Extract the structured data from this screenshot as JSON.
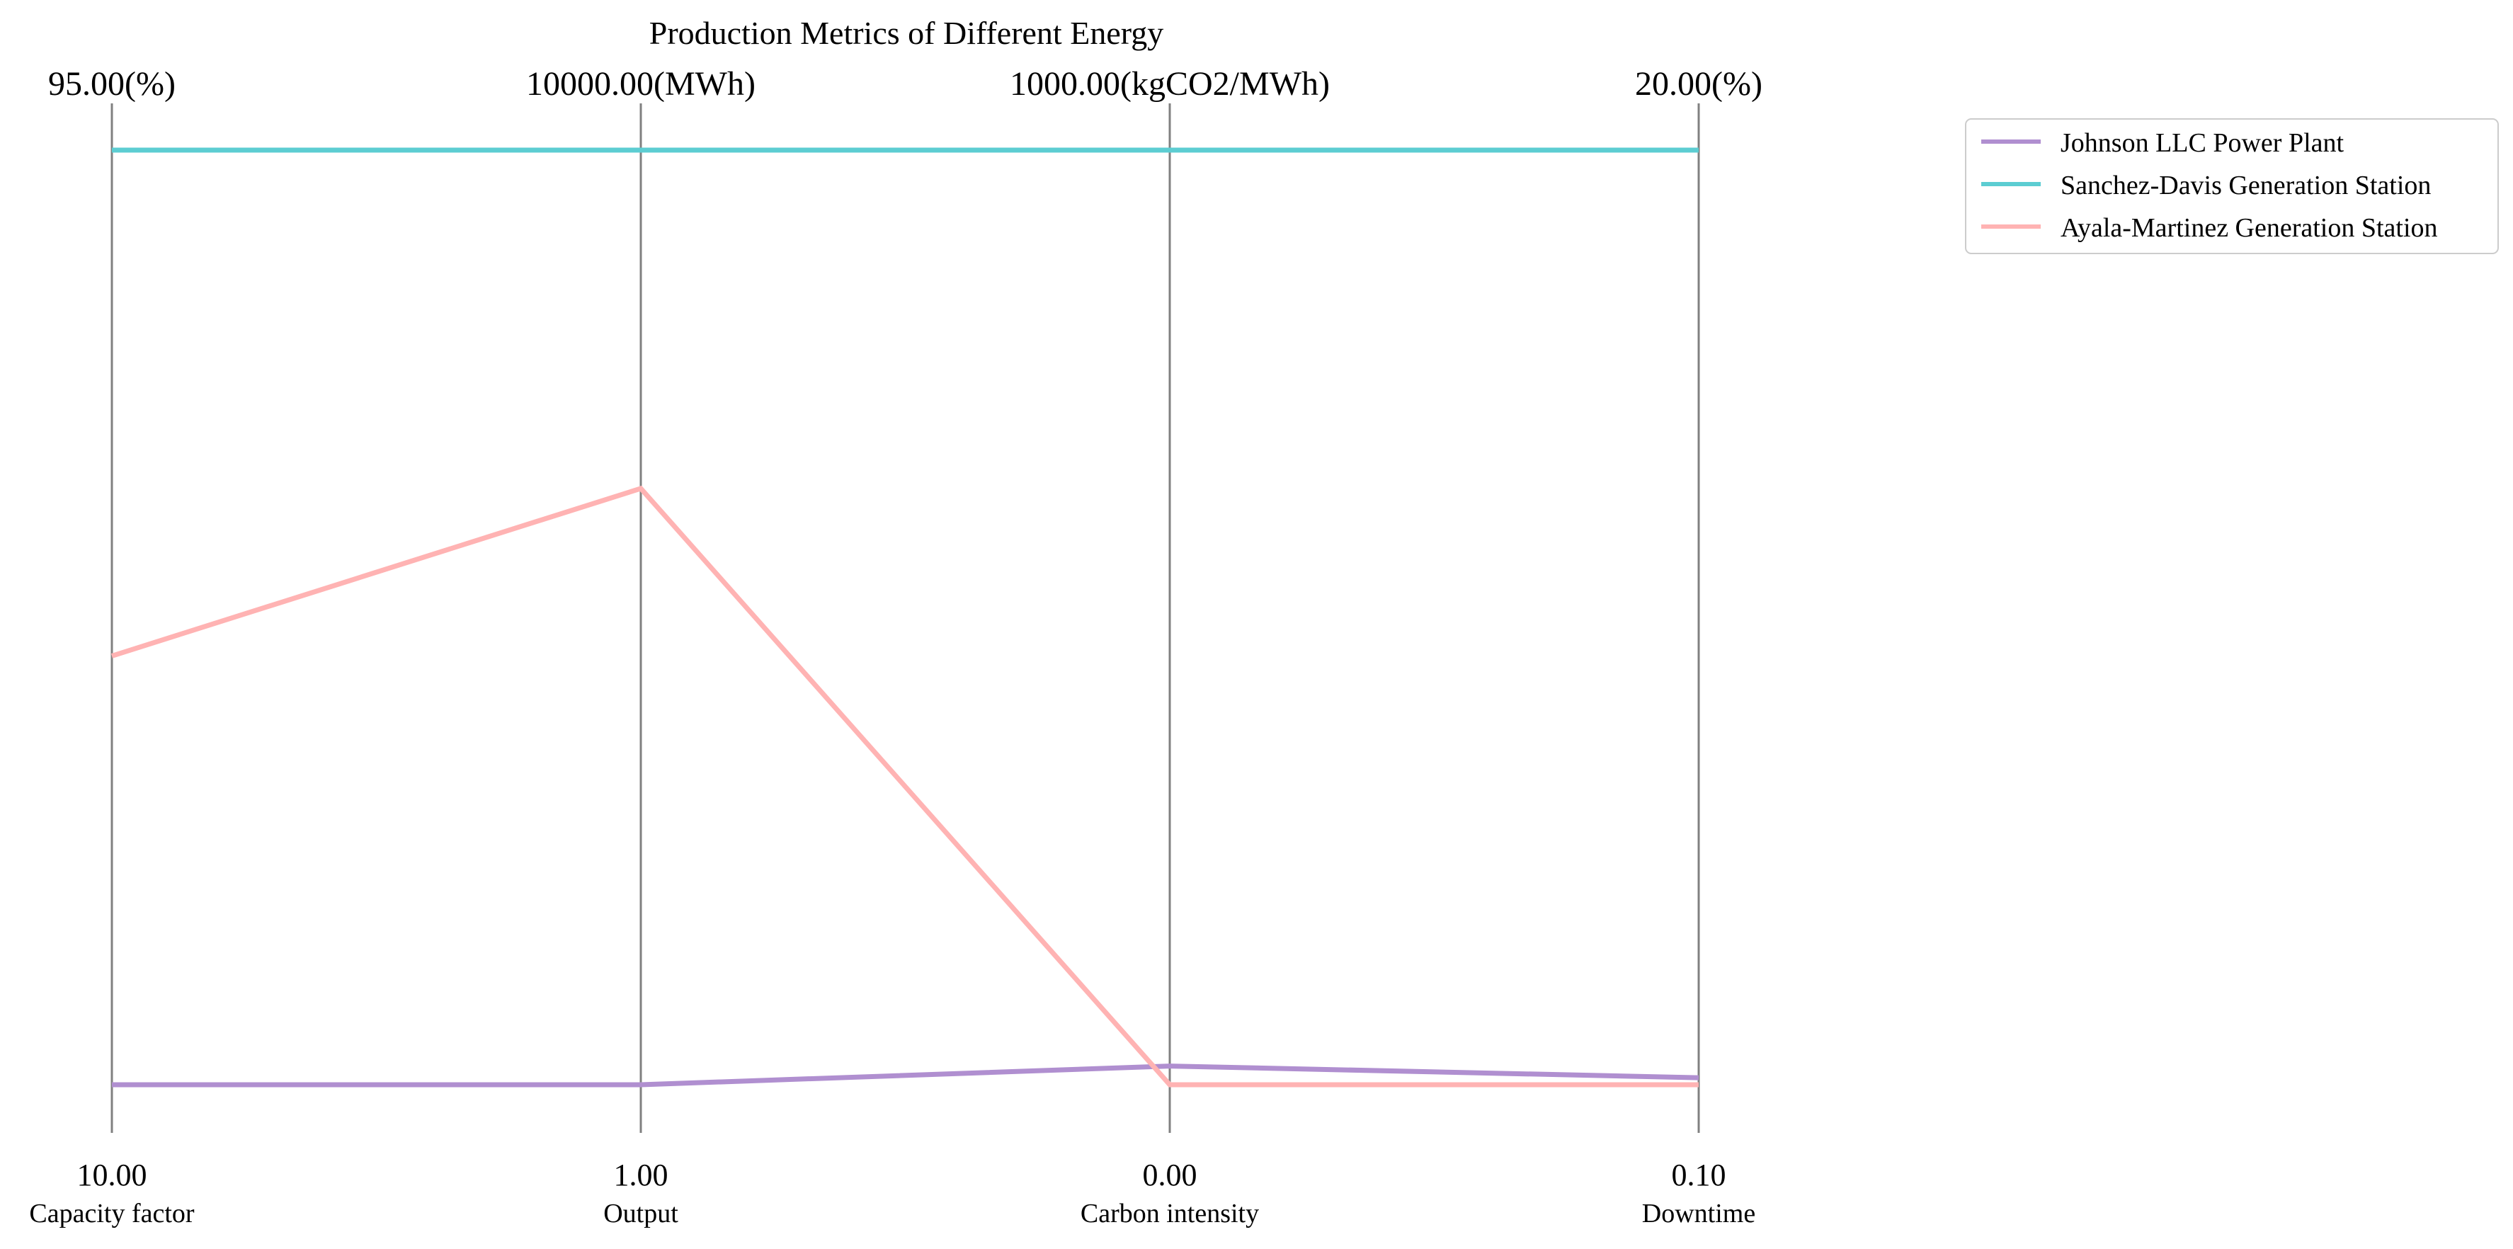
{
  "chart_data": {
    "type": "line",
    "subtype": "parallel-coordinates",
    "title": "Production Metrics of Different Energy",
    "axes": [
      {
        "name": "Capacity factor",
        "min": 10.0,
        "max": 95.0,
        "min_label": "10.00",
        "max_label": "95.00(%)"
      },
      {
        "name": "Output",
        "min": 1.0,
        "max": 10000.0,
        "min_label": "1.00",
        "max_label": "10000.00(MWh)"
      },
      {
        "name": "Carbon intensity",
        "min": 0.0,
        "max": 1000.0,
        "min_label": "0.00",
        "max_label": "1000.00(kgCO2/MWh)"
      },
      {
        "name": "Downtime",
        "min": 0.1,
        "max": 20.0,
        "min_label": "0.10",
        "max_label": "20.00(%)"
      }
    ],
    "series": [
      {
        "name": "Johnson LLC  Power Plant",
        "color": "#b08fd0",
        "values": [
          10.0,
          1.0,
          20.0,
          0.25
        ]
      },
      {
        "name": "Sanchez-Davis  Generation Station",
        "color": "#5ccdd2",
        "values": [
          95.0,
          10000.0,
          1000.0,
          20.0
        ]
      },
      {
        "name": "Ayala-Martinez  Generation Station",
        "color": "#ffb3b3",
        "values": [
          49.0,
          6380.0,
          0.0,
          0.1
        ]
      }
    ],
    "legend_position": "top-right",
    "grid": false
  }
}
